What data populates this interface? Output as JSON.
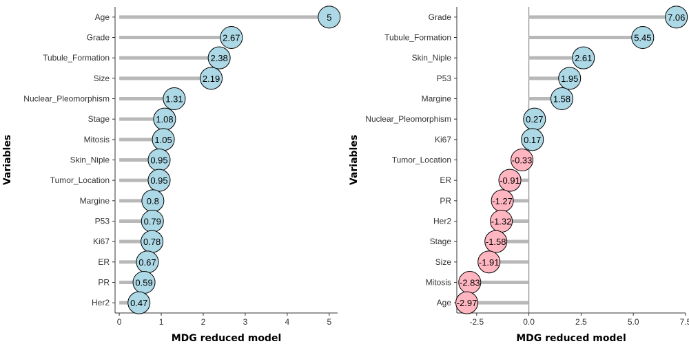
{
  "colors": {
    "positive": "#add8e6",
    "negative": "#ffb6c1",
    "stem": "#b8b8b8",
    "axis": "#333333",
    "zero_line": "#888888",
    "point_stroke": "#000000"
  },
  "chart_data": [
    {
      "type": "lollipop",
      "orientation": "horizontal",
      "xlabel": "MDG reduced model",
      "ylabel": "Variables",
      "xlim": [
        -0.1,
        5.2
      ],
      "xticks": [
        0,
        1,
        2,
        3,
        4,
        5
      ],
      "xtick_labels": [
        "0",
        "1",
        "2",
        "3",
        "4",
        "5"
      ],
      "baseline": 0,
      "zero_line": false,
      "grid": false,
      "legend": "none",
      "categories": [
        "Age",
        "Grade",
        "Tubule_Formation",
        "Size",
        "Nuclear_Pleomorphism",
        "Stage",
        "Mitosis",
        "Skin_Niple",
        "Tumor_Location",
        "Margine",
        "P53",
        "Ki67",
        "ER",
        "PR",
        "Her2"
      ],
      "values": [
        5,
        2.67,
        2.38,
        2.19,
        1.31,
        1.08,
        1.05,
        0.95,
        0.95,
        0.8,
        0.79,
        0.78,
        0.67,
        0.59,
        0.47
      ],
      "value_labels": [
        "5",
        "2.67",
        "2.38",
        "2.19",
        "1.31",
        "1.08",
        "1.05",
        "0.95",
        "0.95",
        "0.8",
        "0.79",
        "0.78",
        "0.67",
        "0.59",
        "0.47"
      ]
    },
    {
      "type": "lollipop",
      "orientation": "horizontal",
      "xlabel": "MDG reduced model",
      "ylabel": "Variables",
      "xlim": [
        -3.45,
        7.5
      ],
      "xticks": [
        -2.5,
        0,
        2.5,
        5,
        7.5
      ],
      "xtick_labels": [
        "-2.5",
        "0.0",
        "2.5",
        "5.0",
        "7.5"
      ],
      "baseline": 0,
      "zero_line": true,
      "grid": false,
      "legend": "none",
      "categories": [
        "Grade",
        "Tubule_Formation",
        "Skin_Niple",
        "P53",
        "Margine",
        "Nuclear_Pleomorphism",
        "Ki67",
        "Tumor_Location",
        "ER",
        "PR",
        "Her2",
        "Stage",
        "Size",
        "Mitosis",
        "Age"
      ],
      "values": [
        7.06,
        5.45,
        2.61,
        1.95,
        1.58,
        0.27,
        0.17,
        -0.33,
        -0.91,
        -1.27,
        -1.32,
        -1.58,
        -1.91,
        -2.83,
        -2.97
      ],
      "value_labels": [
        "7.06",
        "5.45",
        "2.61",
        "1.95",
        "1.58",
        "0.27",
        "0.17",
        "-0.33",
        "-0.91",
        "-1.27",
        "-1.32",
        "-1.58",
        "-1.91",
        "-2.83",
        "-2.97"
      ]
    }
  ]
}
